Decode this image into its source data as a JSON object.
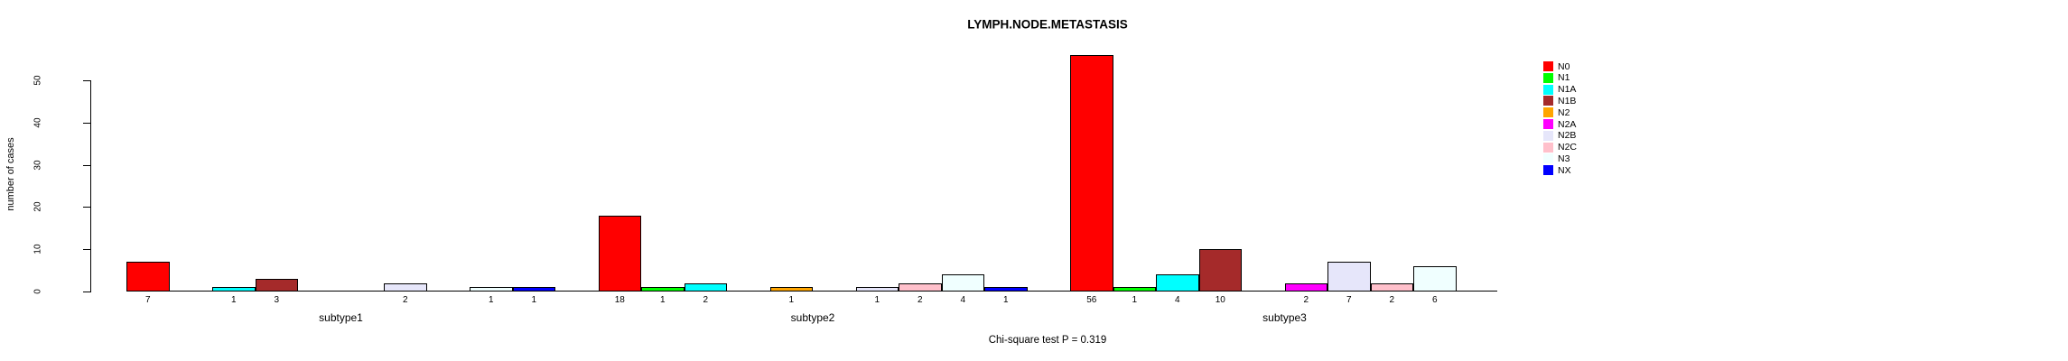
{
  "chart_data": {
    "type": "bar",
    "title": "LYMPH.NODE.METASTASIS",
    "xlabel": "",
    "ylabel": "number of cases",
    "note": "Chi-square test P = 0.319",
    "groups": [
      "subtype1",
      "subtype2",
      "subtype3"
    ],
    "categories": [
      "N0",
      "N1",
      "N1A",
      "N1B",
      "N2",
      "N2A",
      "N2B",
      "N2C",
      "N3",
      "NX"
    ],
    "series": [
      {
        "name": "N0",
        "color": "#FF0000",
        "values": [
          7,
          18,
          56
        ]
      },
      {
        "name": "N1",
        "color": "#00FF00",
        "values": [
          0,
          1,
          1
        ]
      },
      {
        "name": "N1A",
        "color": "#00FFFF",
        "values": [
          1,
          2,
          4
        ]
      },
      {
        "name": "N1B",
        "color": "#A52A2A",
        "values": [
          3,
          0,
          10
        ]
      },
      {
        "name": "N2",
        "color": "#FFA500",
        "values": [
          0,
          1,
          0
        ]
      },
      {
        "name": "N2A",
        "color": "#FF00FF",
        "values": [
          0,
          0,
          2
        ]
      },
      {
        "name": "N2B",
        "color": "#E6E6FA",
        "values": [
          2,
          1,
          7
        ]
      },
      {
        "name": "N2C",
        "color": "#FFC0CB",
        "values": [
          0,
          2,
          2
        ]
      },
      {
        "name": "N3",
        "color": "#F0FFFF",
        "values": [
          1,
          4,
          6
        ]
      },
      {
        "name": "NX",
        "color": "#0000FF",
        "values": [
          1,
          1,
          0
        ]
      }
    ],
    "y_ticks": [
      0,
      10,
      20,
      30,
      40,
      50
    ],
    "ylim": [
      0,
      57
    ],
    "grid": false,
    "legend_position": "right",
    "axis_color": "#000000",
    "background_color": "#FFFFFF"
  }
}
